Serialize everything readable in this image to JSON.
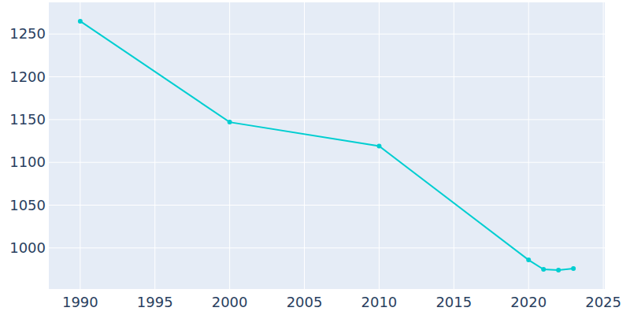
{
  "chart_data": {
    "type": "line",
    "x": [
      1990,
      2000,
      2010,
      2020,
      2021,
      2022,
      2023
    ],
    "values": [
      1265,
      1147,
      1119,
      986,
      975,
      974,
      976
    ],
    "color": "#00CED1",
    "marker": "circle",
    "xlim": [
      1987.9,
      2025.1
    ],
    "xticks": [
      1990,
      1995,
      2000,
      2005,
      2010,
      2015,
      2020,
      2025
    ],
    "ylim": [
      952,
      1287
    ],
    "yticks": [
      1000,
      1050,
      1100,
      1150,
      1200,
      1250
    ],
    "grid": true
  }
}
